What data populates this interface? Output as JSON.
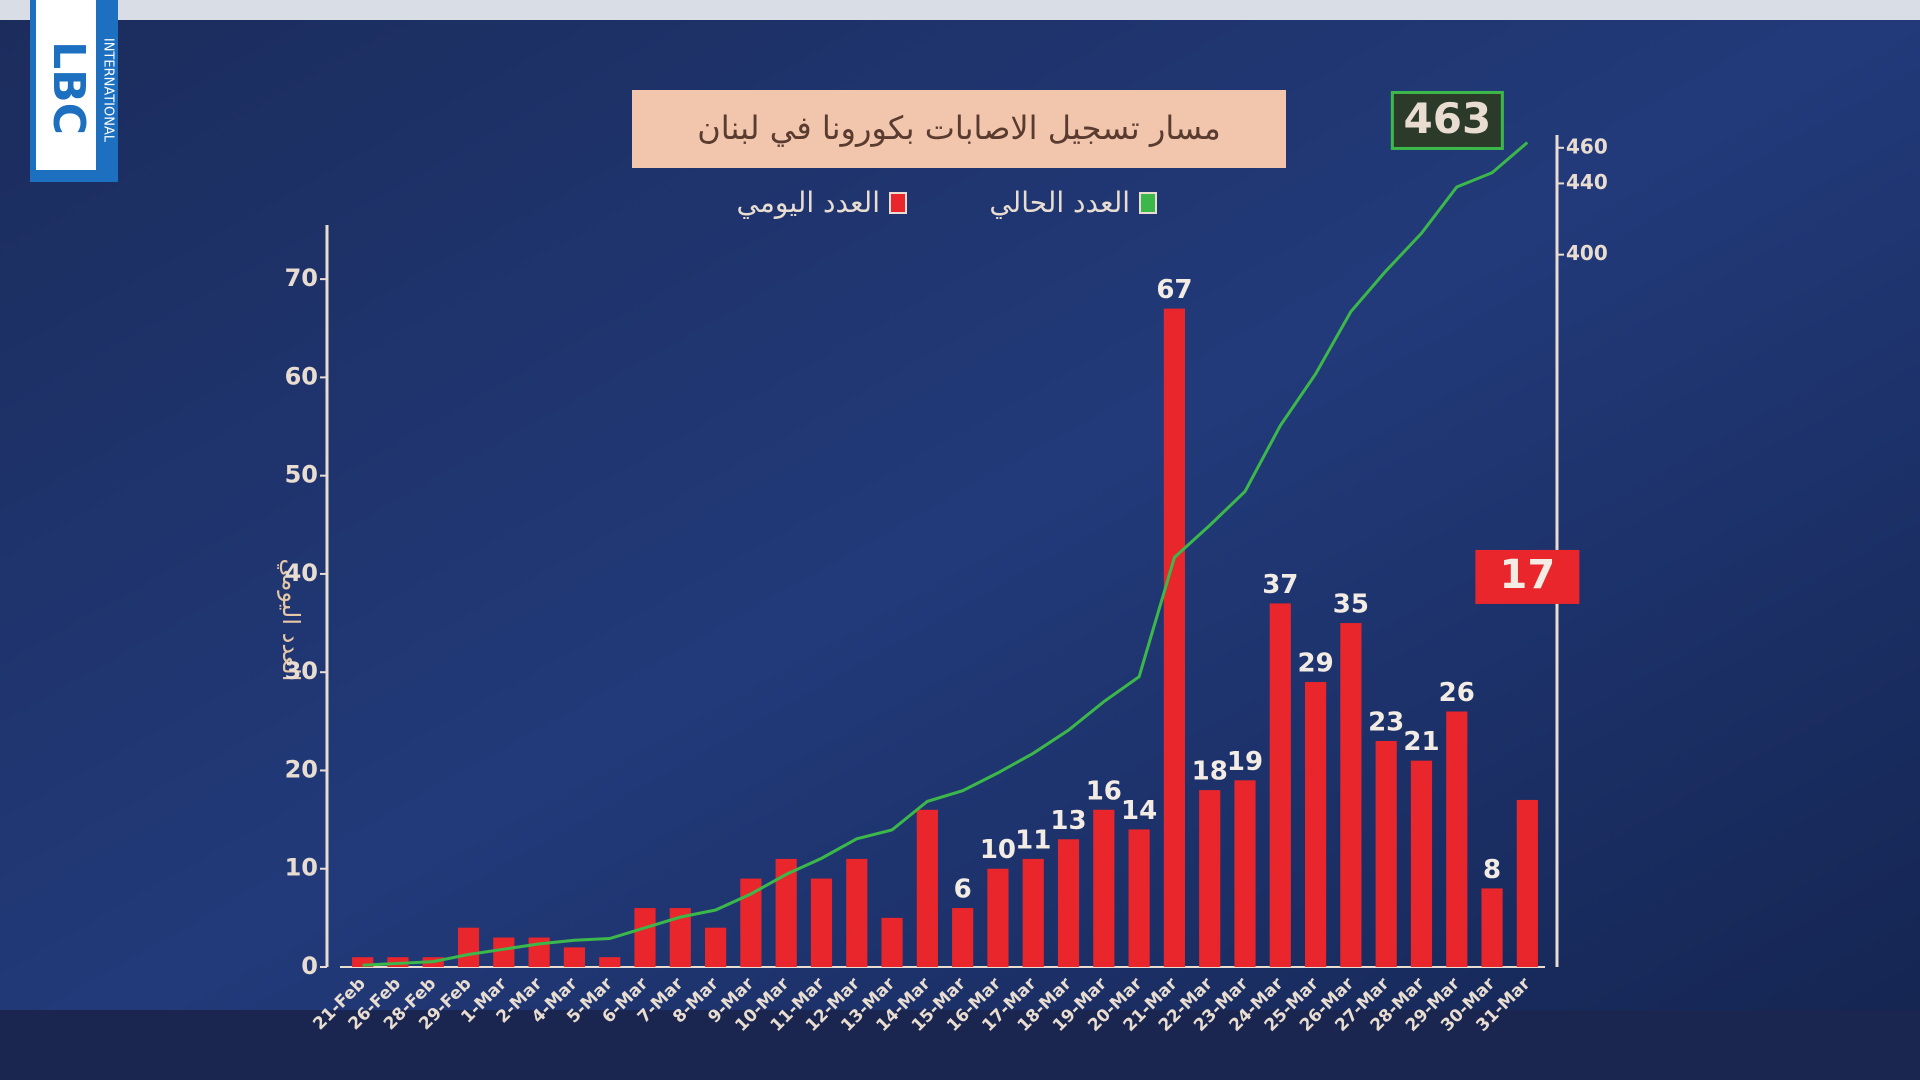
{
  "logo": {
    "name": "LBC",
    "subtitle": "INTERNATIONAL"
  },
  "chart_data": {
    "type": "bar",
    "title": "مسار تسجيل الاصابات بكورونا في لبنان",
    "ylabel": "العدد اليومي",
    "categories": [
      "21-Feb",
      "26-Feb",
      "28-Feb",
      "29-Feb",
      "1-Mar",
      "2-Mar",
      "4-Mar",
      "5-Mar",
      "6-Mar",
      "7-Mar",
      "8-Mar",
      "9-Mar",
      "10-Mar",
      "11-Mar",
      "12-Mar",
      "13-Mar",
      "14-Mar",
      "15-Mar",
      "16-Mar",
      "17-Mar",
      "18-Mar",
      "19-Mar",
      "20-Mar",
      "21-Mar",
      "22-Mar",
      "23-Mar",
      "24-Mar",
      "25-Mar",
      "26-Mar",
      "27-Mar",
      "28-Mar",
      "29-Mar",
      "30-Mar",
      "31-Mar"
    ],
    "series": [
      {
        "name": "العدد اليومي",
        "color": "#e8262b",
        "values": [
          1,
          1,
          1,
          4,
          3,
          3,
          2,
          1,
          6,
          6,
          4,
          9,
          11,
          9,
          11,
          5,
          16,
          6,
          10,
          11,
          13,
          16,
          14,
          67,
          18,
          19,
          37,
          29,
          35,
          23,
          21,
          26,
          8,
          17
        ],
        "value_labels": [
          null,
          null,
          null,
          null,
          null,
          null,
          null,
          null,
          null,
          null,
          null,
          null,
          null,
          null,
          null,
          null,
          null,
          "6",
          "10",
          "11",
          "13",
          "16",
          "14",
          "67",
          "18",
          "19",
          "37",
          "29",
          "35",
          "23",
          "21",
          "26",
          "8",
          "17"
        ]
      },
      {
        "name": "العدد الحالي",
        "color": "#3cb84a",
        "axis": "y2",
        "line": true,
        "values": [
          1,
          2,
          3,
          7,
          10,
          13,
          15,
          16,
          22,
          28,
          32,
          41,
          52,
          61,
          72,
          77,
          93,
          99,
          109,
          120,
          133,
          149,
          163,
          230,
          248,
          267,
          304,
          333,
          368,
          391,
          412,
          438,
          446,
          463
        ]
      }
    ],
    "ylim": [
      0,
      75
    ],
    "yticks": [
      0,
      10,
      20,
      30,
      40,
      50,
      60,
      70
    ],
    "y2lim": [
      0,
      470
    ],
    "y2ticks": [
      400,
      440,
      460
    ]
  }
}
